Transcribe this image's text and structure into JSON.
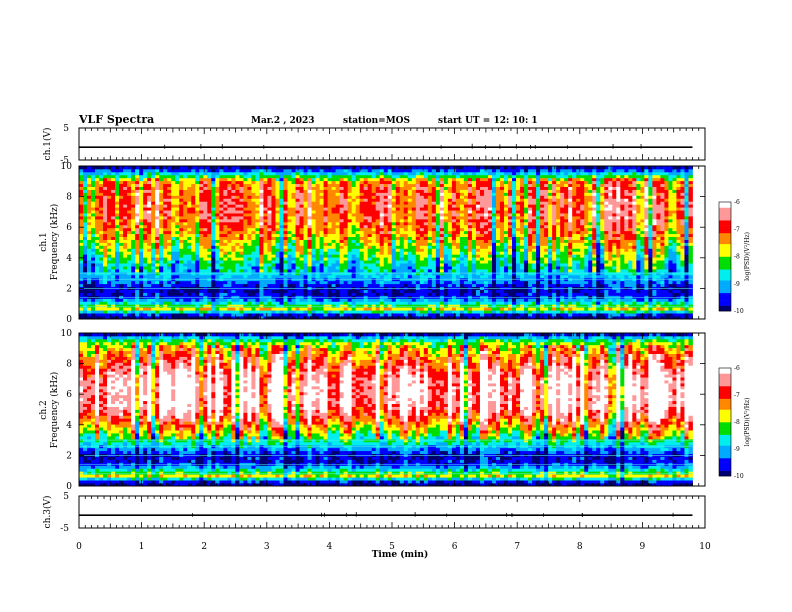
{
  "header": {
    "title": "VLF Spectra",
    "date": "Mar.2 , 2023",
    "station": "station=MOS",
    "start": "start UT = 12: 10: 1"
  },
  "colors": {
    "scale": [
      "#000070",
      "#0000ff",
      "#00aaff",
      "#00eeee",
      "#00dd00",
      "#ffff00",
      "#ff8800",
      "#ff0000",
      "#ff9999",
      "#ffffff"
    ]
  },
  "chart_data": [
    {
      "type": "line",
      "panel": "ch1-waveform",
      "ylabel": "ch.1(V)",
      "ylim": [
        -5,
        5
      ],
      "yticks": [
        "5",
        "-5"
      ],
      "xlim": [
        0,
        10
      ],
      "baseline_value": -1
    },
    {
      "type": "heatmap",
      "panel": "ch1-spectrogram",
      "ylabel": "ch.1\nFrequency (kHz)",
      "ylim": [
        0,
        10
      ],
      "yticks": [
        "0",
        "2",
        "4",
        "6",
        "8",
        "10"
      ],
      "xlim": [
        0,
        9.8
      ],
      "profile": [
        [
          0,
          -10
        ],
        [
          0.3,
          -9.5
        ],
        [
          0.7,
          -7.6
        ],
        [
          1.0,
          -8.5
        ],
        [
          1.5,
          -9.6
        ],
        [
          2.0,
          -9.7
        ],
        [
          2.5,
          -9.2
        ],
        [
          3.0,
          -8.8
        ],
        [
          3.5,
          -8.7
        ],
        [
          4.0,
          -8.3
        ],
        [
          4.5,
          -8.0
        ],
        [
          5.0,
          -7.7
        ],
        [
          5.5,
          -7.4
        ],
        [
          6.0,
          -7.2
        ],
        [
          6.5,
          -7.0
        ],
        [
          7.0,
          -6.9
        ],
        [
          7.5,
          -6.9
        ],
        [
          8.0,
          -7.0
        ],
        [
          8.5,
          -7.1
        ],
        [
          9.0,
          -7.3
        ],
        [
          9.3,
          -8.2
        ],
        [
          9.6,
          -9.0
        ],
        [
          9.8,
          -9.5
        ],
        [
          10,
          -10
        ]
      ],
      "colorbar": {
        "label": "log(PSD)(V²/Hz)",
        "range": [
          -10,
          -6
        ],
        "ticks": [
          "-6",
          "-7",
          "-8",
          "-9",
          "-10"
        ]
      }
    },
    {
      "type": "heatmap",
      "panel": "ch2-spectrogram",
      "ylabel": "ch.2\nFrequency (kHz)",
      "ylim": [
        0,
        10
      ],
      "yticks": [
        "0",
        "2",
        "4",
        "6",
        "8",
        "10"
      ],
      "xlim": [
        0,
        9.8
      ],
      "profile": [
        [
          0,
          -10
        ],
        [
          0.3,
          -9.5
        ],
        [
          0.7,
          -7.6
        ],
        [
          1.0,
          -8.5
        ],
        [
          1.5,
          -9.6
        ],
        [
          2.0,
          -9.7
        ],
        [
          2.5,
          -9.0
        ],
        [
          3.0,
          -8.3
        ],
        [
          3.5,
          -7.7
        ],
        [
          4.0,
          -7.2
        ],
        [
          4.5,
          -6.6
        ],
        [
          5.0,
          -6.2
        ],
        [
          5.5,
          -6.0
        ],
        [
          6.0,
          -6.0
        ],
        [
          6.5,
          -6.0
        ],
        [
          7.0,
          -6.1
        ],
        [
          7.5,
          -6.3
        ],
        [
          8.0,
          -6.7
        ],
        [
          8.5,
          -7.0
        ],
        [
          9.0,
          -7.4
        ],
        [
          9.3,
          -7.9
        ],
        [
          9.6,
          -8.5
        ],
        [
          9.8,
          -9.2
        ],
        [
          10,
          -10
        ]
      ],
      "colorbar": {
        "label": "log(PSD)(V²/Hz)",
        "range": [
          -10,
          -6
        ],
        "ticks": [
          "-6",
          "-7",
          "-8",
          "-9",
          "-10"
        ]
      }
    },
    {
      "type": "line",
      "panel": "ch3-waveform",
      "ylabel": "ch.3(V)",
      "ylim": [
        -5,
        5
      ],
      "yticks": [
        "5",
        "-5"
      ],
      "xlim": [
        0,
        10
      ],
      "baseline_value": -1
    }
  ],
  "xaxis": {
    "label": "Time (min)",
    "ticks": [
      "0",
      "1",
      "2",
      "3",
      "4",
      "5",
      "6",
      "7",
      "8",
      "9",
      "10"
    ]
  }
}
